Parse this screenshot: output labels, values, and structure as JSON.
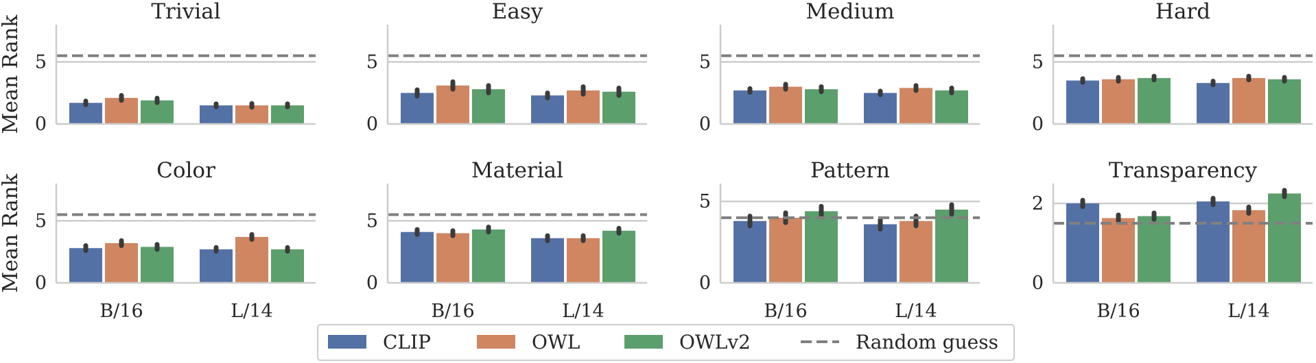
{
  "chart_data": {
    "type": "bar",
    "ylabel": "Mean Rank",
    "categories": [
      "B/16",
      "L/14"
    ],
    "series_names": [
      "CLIP",
      "OWL",
      "OWLv2"
    ],
    "colors": {
      "CLIP": "#5471a6",
      "OWL": "#cf8661",
      "OWLv2": "#5b9f6c",
      "random": "#808080",
      "grid": "#cccccc",
      "errorbar": "#3b3b3b"
    },
    "legend": {
      "placement": "bottom-center",
      "entries": [
        "CLIP",
        "OWL",
        "OWLv2",
        "Random guess"
      ]
    },
    "panels": [
      {
        "title": "Trivial",
        "ylim": [
          0,
          8
        ],
        "yticks": [
          0,
          5
        ],
        "random_guess": 5.5,
        "series": [
          {
            "name": "CLIP",
            "values": [
              1.7,
              1.5
            ],
            "err": [
              0.15,
              0.12
            ]
          },
          {
            "name": "OWL",
            "values": [
              2.1,
              1.5
            ],
            "err": [
              0.2,
              0.15
            ]
          },
          {
            "name": "OWLv2",
            "values": [
              1.9,
              1.5
            ],
            "err": [
              0.18,
              0.12
            ]
          }
        ]
      },
      {
        "title": "Easy",
        "ylim": [
          0,
          8
        ],
        "yticks": [
          0,
          5
        ],
        "random_guess": 5.5,
        "series": [
          {
            "name": "CLIP",
            "values": [
              2.5,
              2.3
            ],
            "err": [
              0.25,
              0.2
            ]
          },
          {
            "name": "OWL",
            "values": [
              3.1,
              2.7
            ],
            "err": [
              0.3,
              0.3
            ]
          },
          {
            "name": "OWLv2",
            "values": [
              2.8,
              2.6
            ],
            "err": [
              0.3,
              0.3
            ]
          }
        ]
      },
      {
        "title": "Medium",
        "ylim": [
          0,
          8
        ],
        "yticks": [
          0,
          5
        ],
        "random_guess": 5.5,
        "series": [
          {
            "name": "CLIP",
            "values": [
              2.7,
              2.5
            ],
            "err": [
              0.15,
              0.15
            ]
          },
          {
            "name": "OWL",
            "values": [
              3.0,
              2.9
            ],
            "err": [
              0.2,
              0.2
            ]
          },
          {
            "name": "OWLv2",
            "values": [
              2.8,
              2.7
            ],
            "err": [
              0.2,
              0.2
            ]
          }
        ]
      },
      {
        "title": "Hard",
        "ylim": [
          0,
          8
        ],
        "yticks": [
          0,
          5
        ],
        "random_guess": 5.5,
        "series": [
          {
            "name": "CLIP",
            "values": [
              3.5,
              3.3
            ],
            "err": [
              0.15,
              0.15
            ]
          },
          {
            "name": "OWL",
            "values": [
              3.6,
              3.7
            ],
            "err": [
              0.15,
              0.15
            ]
          },
          {
            "name": "OWLv2",
            "values": [
              3.7,
              3.6
            ],
            "err": [
              0.15,
              0.15
            ]
          }
        ]
      },
      {
        "title": "Color",
        "ylim": [
          0,
          8
        ],
        "yticks": [
          0,
          5
        ],
        "random_guess": 5.5,
        "series": [
          {
            "name": "CLIP",
            "values": [
              2.8,
              2.7
            ],
            "err": [
              0.2,
              0.15
            ]
          },
          {
            "name": "OWL",
            "values": [
              3.2,
              3.7
            ],
            "err": [
              0.2,
              0.2
            ]
          },
          {
            "name": "OWLv2",
            "values": [
              2.9,
              2.7
            ],
            "err": [
              0.2,
              0.15
            ]
          }
        ]
      },
      {
        "title": "Material",
        "ylim": [
          0,
          8
        ],
        "yticks": [
          0,
          5
        ],
        "random_guess": 5.5,
        "series": [
          {
            "name": "CLIP",
            "values": [
              4.1,
              3.6
            ],
            "err": [
              0.2,
              0.2
            ]
          },
          {
            "name": "OWL",
            "values": [
              4.0,
              3.6
            ],
            "err": [
              0.2,
              0.2
            ]
          },
          {
            "name": "OWLv2",
            "values": [
              4.3,
              4.2
            ],
            "err": [
              0.2,
              0.2
            ]
          }
        ]
      },
      {
        "title": "Pattern",
        "ylim": [
          0,
          6.1
        ],
        "yticks": [
          0,
          5
        ],
        "random_guess": 4.0,
        "series": [
          {
            "name": "CLIP",
            "values": [
              3.8,
              3.6
            ],
            "err": [
              0.3,
              0.3
            ]
          },
          {
            "name": "OWL",
            "values": [
              4.0,
              3.8
            ],
            "err": [
              0.3,
              0.3
            ]
          },
          {
            "name": "OWLv2",
            "values": [
              4.4,
              4.5
            ],
            "err": [
              0.3,
              0.3
            ]
          }
        ]
      },
      {
        "title": "Transparency",
        "ylim": [
          0,
          2.5
        ],
        "yticks": [
          0,
          2
        ],
        "random_guess": 1.5,
        "series": [
          {
            "name": "CLIP",
            "values": [
              2.0,
              2.05
            ],
            "err": [
              0.08,
              0.08
            ]
          },
          {
            "name": "OWL",
            "values": [
              1.63,
              1.83
            ],
            "err": [
              0.08,
              0.08
            ]
          },
          {
            "name": "OWLv2",
            "values": [
              1.68,
              2.25
            ],
            "err": [
              0.08,
              0.08
            ]
          }
        ]
      }
    ]
  }
}
